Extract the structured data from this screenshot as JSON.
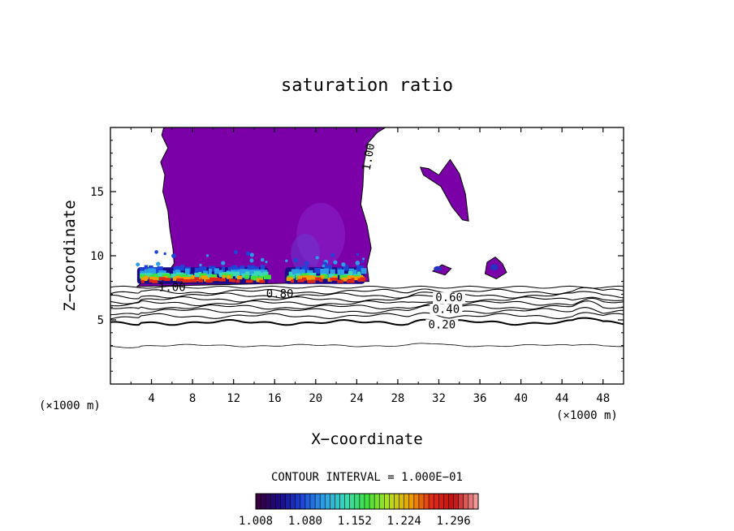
{
  "chart_data": {
    "type": "heatmap",
    "title": "saturation ratio",
    "xlabel": "X−coordinate",
    "ylabel": "Z−coordinate",
    "x_unit": "(×1000 m)",
    "z_unit": "(×1000 m)",
    "xlim": [
      0,
      50
    ],
    "ylim": [
      0,
      20
    ],
    "x_ticks": [
      4,
      8,
      12,
      16,
      20,
      24,
      28,
      32,
      36,
      40,
      44,
      48
    ],
    "y_ticks": [
      5,
      10,
      15
    ],
    "contour_interval_label": "CONTOUR INTERVAL = 1.000E−01",
    "contour_labels": [
      {
        "text": "1.00",
        "x": 6.0,
        "z": 7.5
      },
      {
        "text": "0.80",
        "x": 16.5,
        "z": 7.0
      },
      {
        "text": "0.60",
        "x": 33.0,
        "z": 6.7
      },
      {
        "text": "0.40",
        "x": 32.7,
        "z": 5.8
      },
      {
        "text": "0.20",
        "x": 32.3,
        "z": 4.6
      },
      {
        "text": "1.00",
        "x": 25.2,
        "z": 17.7
      }
    ],
    "contour_levels": [
      {
        "level": 0.9,
        "base_z": 7.2
      },
      {
        "level": 0.8,
        "base_z": 6.9
      },
      {
        "level": 0.7,
        "base_z": 6.6
      },
      {
        "level": 0.6,
        "base_z": 6.3
      },
      {
        "level": 0.5,
        "base_z": 6.0
      },
      {
        "level": 0.4,
        "base_z": 5.7
      },
      {
        "level": 0.3,
        "base_z": 5.3
      },
      {
        "level": 0.2,
        "base_z": 4.8
      },
      {
        "level": 0.1,
        "base_z": 3.0
      }
    ],
    "colorbar": {
      "min": 1.008,
      "max": 1.332,
      "tick_labels": [
        "1.008",
        "1.080",
        "1.152",
        "1.224",
        "1.296"
      ],
      "tick_values": [
        1.008,
        1.08,
        1.152,
        1.224,
        1.296
      ],
      "colors": [
        "#3a0040",
        "#1a0a88",
        "#1e44d8",
        "#2c9ee8",
        "#3ad8b8",
        "#40e040",
        "#b4e020",
        "#f0a000",
        "#e02818",
        "#c01010",
        "#f09898"
      ]
    },
    "supersaturated_region_color": "#7b00a8",
    "cloud_base_z": 8.0
  }
}
